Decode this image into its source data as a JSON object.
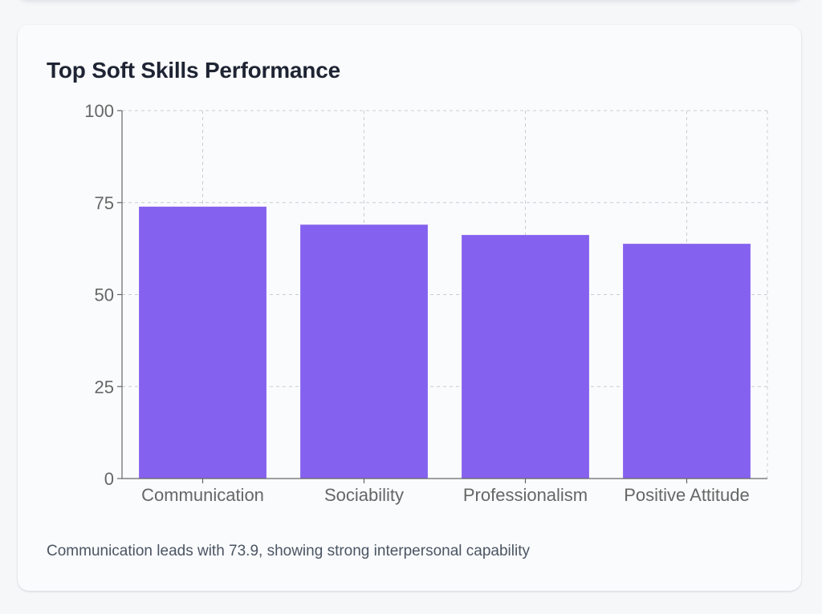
{
  "card": {
    "title": "Top Soft Skills Performance",
    "caption": "Communication leads with 73.9, showing strong interpersonal capability"
  },
  "chart_data": {
    "type": "bar",
    "title": "Top Soft Skills Performance",
    "categories": [
      "Communication",
      "Sociability",
      "Professionalism",
      "Positive Attitude"
    ],
    "values": [
      73.9,
      69.0,
      66.2,
      63.8
    ],
    "ylim": [
      0,
      100
    ],
    "yticks": [
      0,
      25,
      50,
      75,
      100
    ],
    "xlabel": "",
    "ylabel": "",
    "grid": true,
    "legend": "none",
    "bar_color": "#8561ef"
  }
}
